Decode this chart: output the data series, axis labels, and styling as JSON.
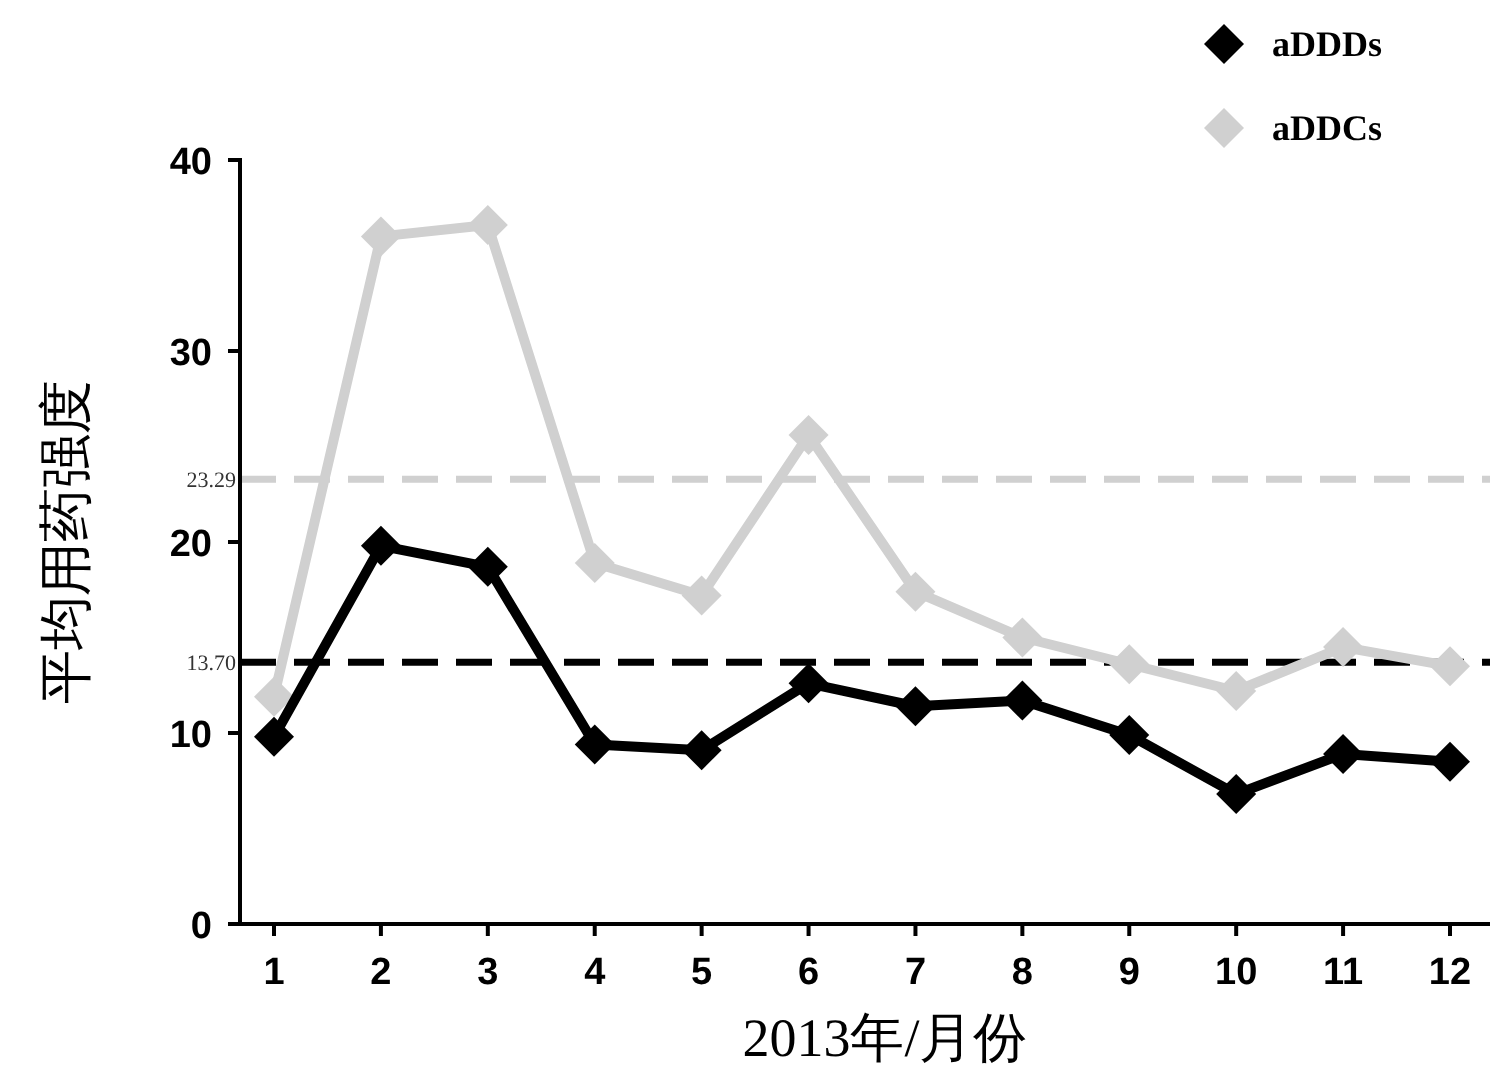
{
  "chart_data": {
    "type": "line",
    "xlabel": "2013年/月份",
    "ylabel": "平均用药强度",
    "categories": [
      "1",
      "2",
      "3",
      "4",
      "5",
      "6",
      "7",
      "8",
      "9",
      "10",
      "11",
      "12"
    ],
    "series": [
      {
        "name": "aDDDs",
        "color": "#000000",
        "values": [
          9.8,
          19.8,
          18.7,
          9.4,
          9.1,
          12.6,
          11.4,
          11.7,
          9.9,
          6.8,
          8.9,
          8.5
        ]
      },
      {
        "name": "aDDCs",
        "color": "#d0d0d0",
        "values": [
          11.9,
          36.0,
          36.6,
          18.9,
          17.2,
          25.6,
          17.4,
          15.0,
          13.6,
          12.2,
          14.5,
          13.5
        ]
      }
    ],
    "ylim": [
      0,
      40
    ],
    "yticks": [
      0,
      10,
      20,
      30,
      40
    ],
    "ref_lines": [
      {
        "axis": "y",
        "value": 23.29,
        "label": "23.29",
        "color": "#d0d0d0",
        "line_style": "dashed"
      },
      {
        "axis": "y",
        "value": 13.7,
        "label": "13.70",
        "color": "#000000",
        "line_style": "dashed"
      }
    ],
    "marker": "diamond",
    "line_style": "solid",
    "grid": false,
    "legend": "top right"
  }
}
